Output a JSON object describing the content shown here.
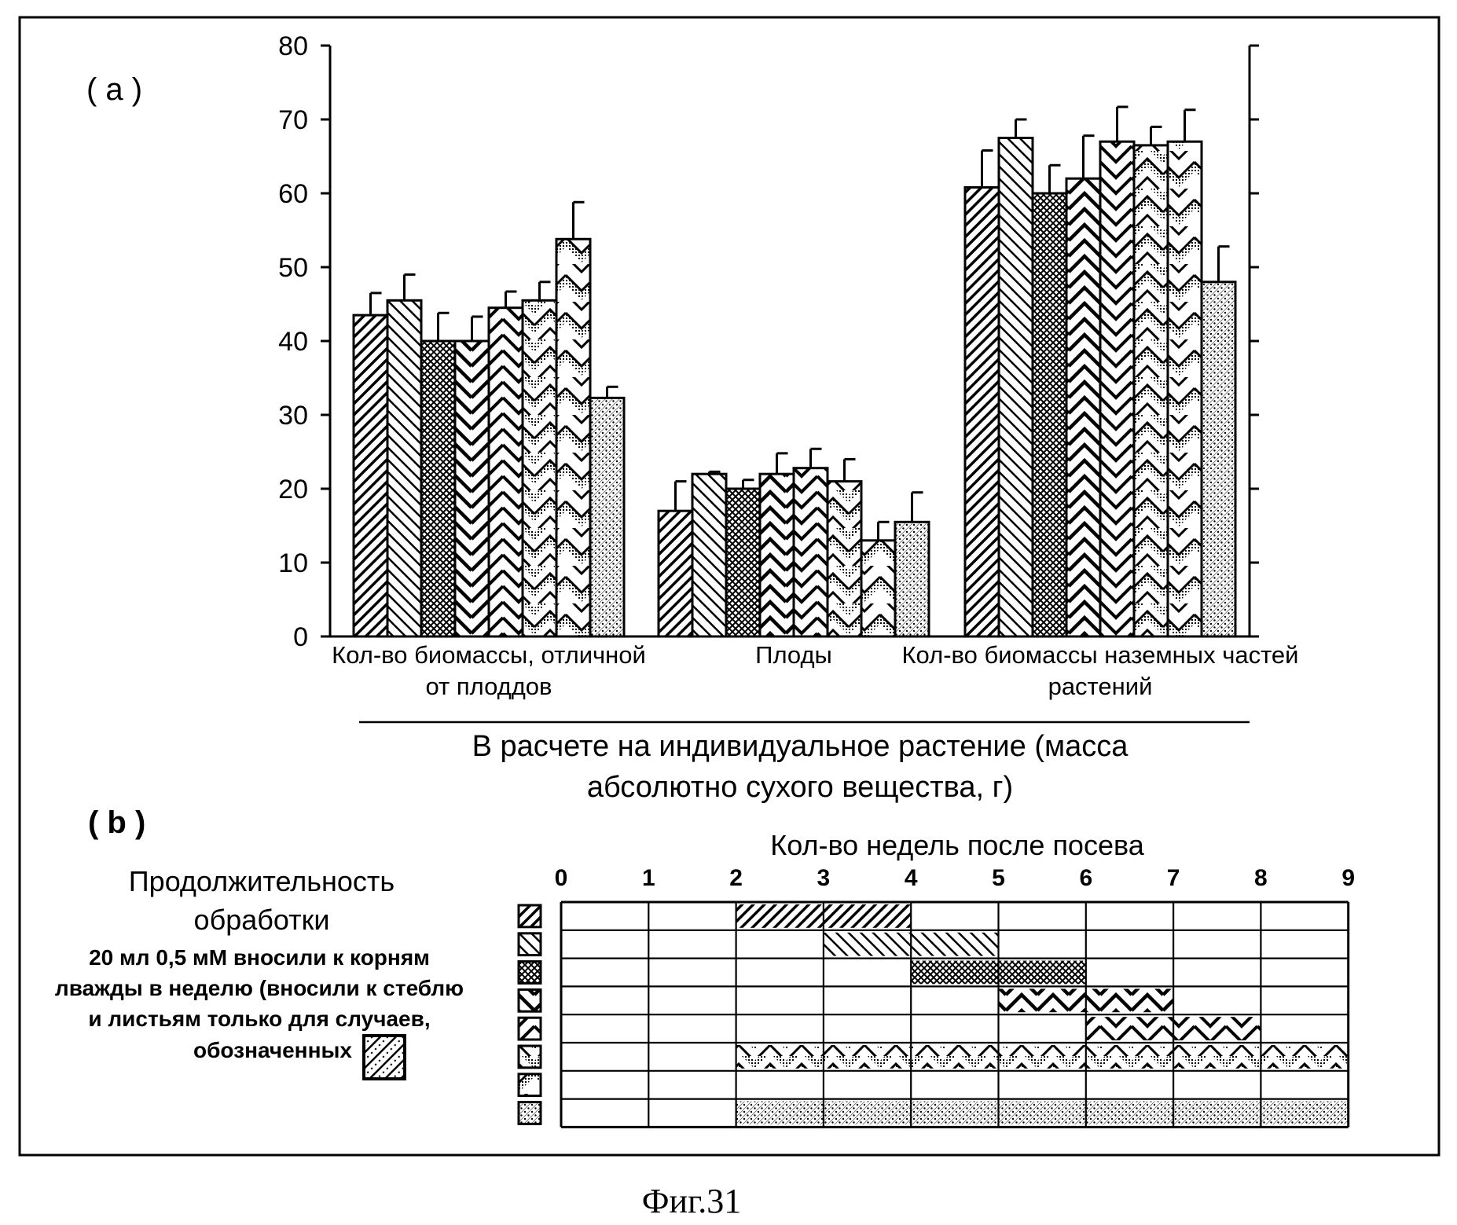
{
  "panel_a_label": "( a )",
  "panel_b_label": "( b )",
  "figure_caption": "Фиг.31",
  "chart_data": {
    "type": "bar",
    "title": "",
    "xlabel": "В расчете на индивидуальное растение (масса абсолютно сухого вещества, г)",
    "xlabel_lines": [
      "В расчете на индивидуальное растение (масса",
      "абсолютно сухого вещества, г)"
    ],
    "ylabel": "",
    "ylim": [
      0,
      80
    ],
    "yticks": [
      0,
      10,
      20,
      30,
      40,
      50,
      60,
      70,
      80
    ],
    "grid": false,
    "legend": "none",
    "categories": [
      [
        "Кол-во биомассы, отличной",
        "от плоддов"
      ],
      [
        "Плоды"
      ],
      [
        "Кол-во биомассы наземных частей",
        "растений"
      ]
    ],
    "series": [
      {
        "pattern": "diag-dense",
        "values": [
          43.5,
          17.0,
          60.8
        ],
        "errors": [
          3.0,
          4.0,
          5.0
        ]
      },
      {
        "pattern": "diag-back",
        "values": [
          45.5,
          22.0,
          67.5
        ],
        "errors": [
          3.5,
          0.3,
          2.5
        ]
      },
      {
        "pattern": "cross-hatch",
        "values": [
          40.0,
          20.0,
          60.0
        ],
        "errors": [
          3.8,
          1.2,
          3.8
        ]
      },
      {
        "pattern": "chevron-thick",
        "values": [
          40.0,
          22.0,
          62.0
        ],
        "errors": [
          3.3,
          2.8,
          5.8
        ]
      },
      {
        "pattern": "chevron-back",
        "values": [
          44.5,
          22.8,
          67.0
        ],
        "errors": [
          2.2,
          2.6,
          4.7
        ]
      },
      {
        "pattern": "chevron-stipple",
        "values": [
          45.5,
          21.0,
          66.5
        ],
        "errors": [
          2.5,
          3.0,
          2.5
        ]
      },
      {
        "pattern": "chevron-stipple-wide",
        "values": [
          53.8,
          13.0,
          67.0
        ],
        "errors": [
          5.0,
          2.5,
          4.3
        ]
      },
      {
        "pattern": "dotted",
        "values": [
          32.3,
          15.5,
          48.0
        ],
        "errors": [
          1.5,
          4.0,
          4.8
        ]
      }
    ]
  },
  "schedule": {
    "side_title_lines": [
      "Продолжительность",
      "обработки"
    ],
    "side_note_lines": [
      "20 мл 0,5 мМ вносили к корням",
      "лважды в неделю (вносили к стеблю",
      "и листьям только для случаев,",
      "обозначенных"
    ],
    "weeks_title": "Кол-во недель после посева",
    "week_labels": [
      "0",
      "1",
      "2",
      "3",
      "4",
      "5",
      "6",
      "7",
      "8",
      "9"
    ],
    "rows": [
      {
        "pattern": "diag-dense",
        "from_week": 2,
        "to_week": 4
      },
      {
        "pattern": "diag-back",
        "from_week": 3,
        "to_week": 5
      },
      {
        "pattern": "cross-hatch",
        "from_week": 4,
        "to_week": 6
      },
      {
        "pattern": "chevron-thick",
        "from_week": 5,
        "to_week": 7
      },
      {
        "pattern": "chevron-back",
        "from_week": 6,
        "to_week": 8
      },
      {
        "pattern": "chevron-stipple",
        "from_week": 2,
        "to_week": 9
      },
      {
        "pattern": "chevron-stipple-wide",
        "from_week": null,
        "to_week": null
      },
      {
        "pattern": "dotted",
        "from_week": 2,
        "to_week": 9
      }
    ]
  }
}
